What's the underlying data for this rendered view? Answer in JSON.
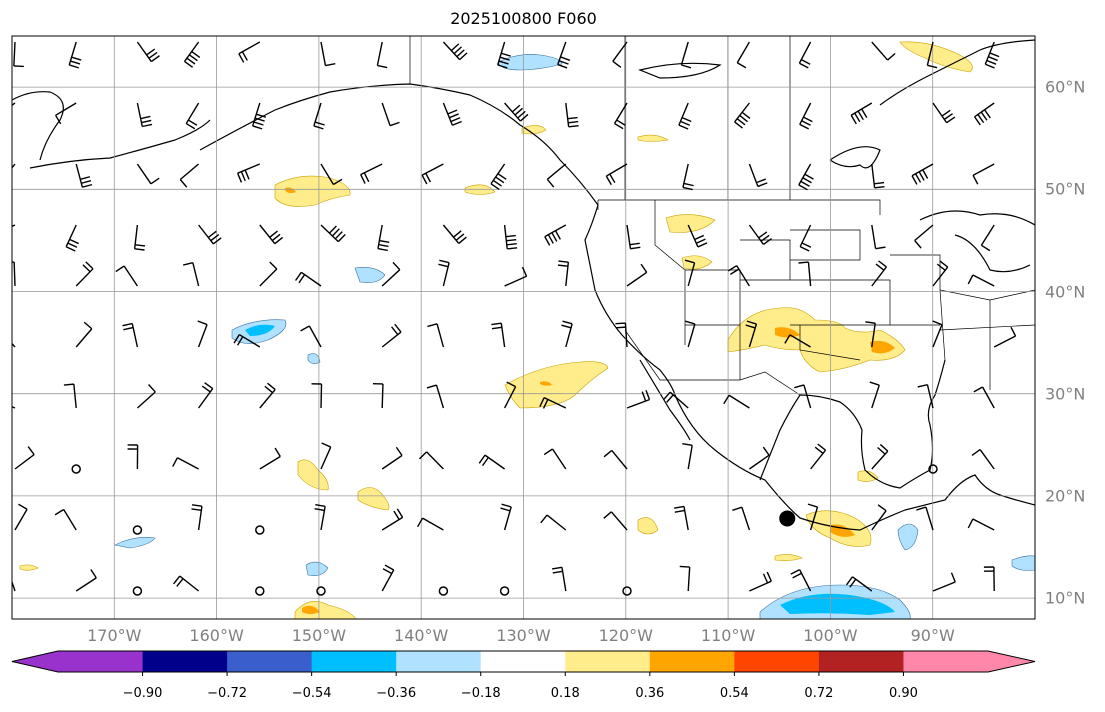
{
  "title": "2025100800 F060",
  "lon_labels": [
    "170°W",
    "160°W",
    "150°W",
    "140°W",
    "130°W",
    "120°W",
    "110°W",
    "100°W",
    "90°W"
  ],
  "lat_labels": [
    "60°N",
    "50°N",
    "40°N",
    "30°N",
    "20°N",
    "10°N"
  ],
  "colorbar": {
    "labels": [
      "−0.90",
      "−0.72",
      "−0.54",
      "−0.36",
      "−0.18",
      "0.18",
      "0.36",
      "0.54",
      "0.72",
      "0.90"
    ],
    "colors": [
      "#9932CC",
      "#00008B",
      "#3A5FCD",
      "#00BFFF",
      "#B0E2FF",
      "#FFFFFF",
      "#FFEC8B",
      "#FFA500",
      "#FF4500",
      "#B22222",
      "#FF88AA"
    ],
    "extend": "both"
  },
  "marker": {
    "label": "",
    "lon": -105,
    "lat": 17.5
  }
}
